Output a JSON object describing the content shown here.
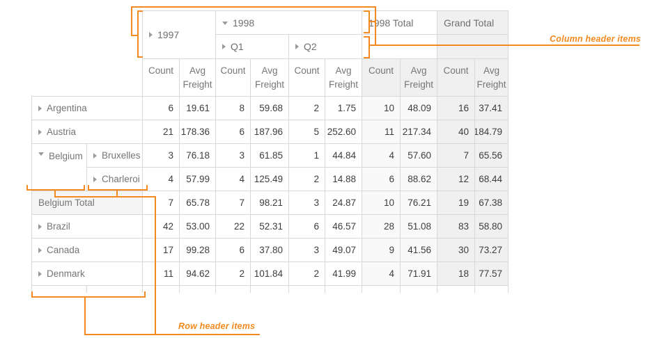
{
  "accent_color": "#f28a1f",
  "annotations": {
    "column_header_label": "Column header items",
    "row_header_label": "Row header items"
  },
  "pivot": {
    "column_headers": {
      "y1997": "1997",
      "y1998": "1998",
      "q1": "Q1",
      "q2": "Q2",
      "total_1998": "1998 Total",
      "grand_total": "Grand Total"
    },
    "measures": {
      "count": "Count",
      "avg_freight": "Avg Freight"
    },
    "row_headers": {
      "belgium": "Belgium"
    },
    "rows": [
      {
        "label": "Argentina",
        "expandable": true,
        "values": [
          "6",
          "19.61",
          "8",
          "59.68",
          "2",
          "1.75",
          "10",
          "48.09",
          "16",
          "37.41"
        ]
      },
      {
        "label": "Austria",
        "expandable": true,
        "values": [
          "21",
          "178.36",
          "6",
          "187.96",
          "5",
          "252.60",
          "11",
          "217.34",
          "40",
          "184.79"
        ]
      },
      {
        "label": "Bruxelles",
        "expandable": true,
        "values": [
          "3",
          "76.18",
          "3",
          "61.85",
          "1",
          "44.84",
          "4",
          "57.60",
          "7",
          "65.56"
        ]
      },
      {
        "label": "Charleroi",
        "expandable": true,
        "values": [
          "4",
          "57.99",
          "4",
          "125.49",
          "2",
          "14.88",
          "6",
          "88.62",
          "12",
          "68.44"
        ]
      },
      {
        "label": "Belgium Total",
        "expandable": false,
        "values": [
          "7",
          "65.78",
          "7",
          "98.21",
          "3",
          "24.87",
          "10",
          "76.21",
          "19",
          "67.38"
        ]
      },
      {
        "label": "Brazil",
        "expandable": true,
        "values": [
          "42",
          "53.00",
          "22",
          "52.31",
          "6",
          "46.57",
          "28",
          "51.08",
          "83",
          "58.80"
        ]
      },
      {
        "label": "Canada",
        "expandable": true,
        "values": [
          "17",
          "99.28",
          "6",
          "37.80",
          "3",
          "49.07",
          "9",
          "41.56",
          "30",
          "73.27"
        ]
      },
      {
        "label": "Denmark",
        "expandable": true,
        "values": [
          "11",
          "94.62",
          "2",
          "101.84",
          "2",
          "41.99",
          "4",
          "71.91",
          "18",
          "77.57"
        ]
      }
    ]
  }
}
